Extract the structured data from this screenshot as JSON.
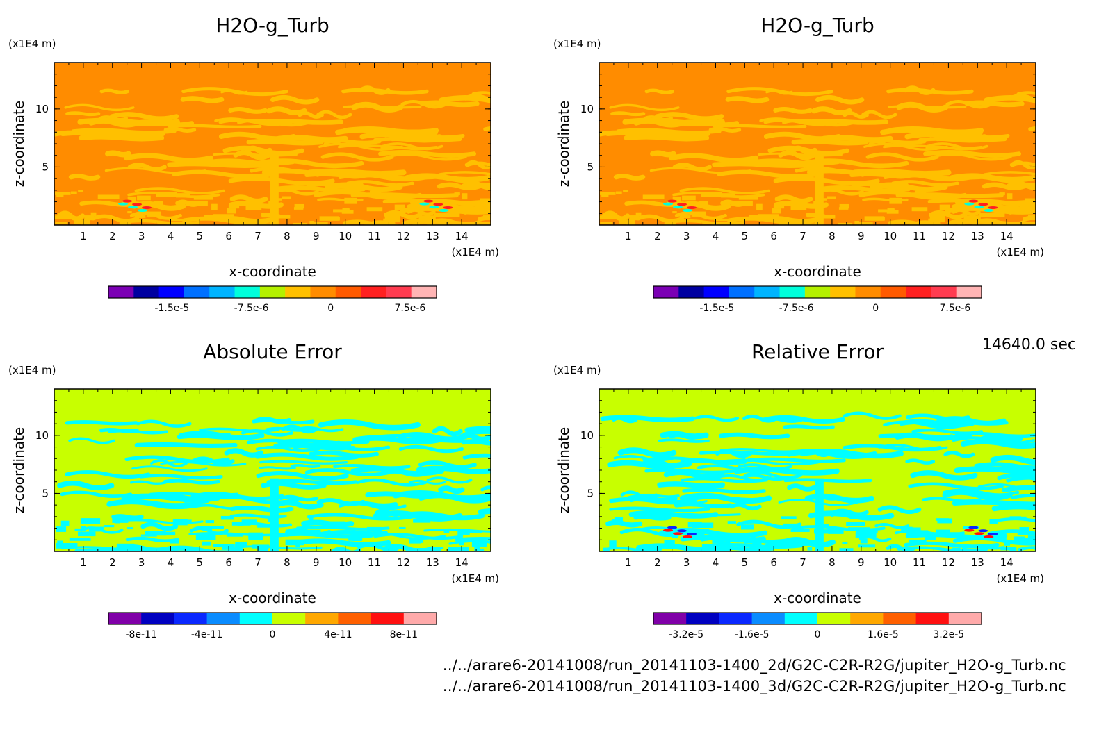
{
  "timestamp": "14640.0 sec",
  "footer": {
    "line1": "../../arare6-20141008/run_20141103-1400_2d/G2C-C2R-R2G/jupiter_H2O-g_Turb.nc",
    "line2": "../../arare6-20141008/run_20141103-1400_3d/G2C-C2R-R2G/jupiter_H2O-g_Turb.nc"
  },
  "chart_data": [
    {
      "type": "heatmap",
      "title": "H2O-g_Turb",
      "xlabel": "x-coordinate",
      "ylabel": "z-coordinate",
      "xunit": "(x1E4 m)",
      "yunit": "(x1E4 m)",
      "xlim": [
        0,
        15
      ],
      "ylim": [
        0,
        14
      ],
      "xticks": [
        "1",
        "2",
        "3",
        "4",
        "5",
        "6",
        "7",
        "8",
        "9",
        "10",
        "11",
        "12",
        "13",
        "14"
      ],
      "yticks": [
        "5",
        "10"
      ],
      "colorbar": {
        "colors": [
          "#7b00b4",
          "#0000a0",
          "#0000ff",
          "#0070ff",
          "#00b4ff",
          "#00ffdc",
          "#b4f000",
          "#ffc000",
          "#ff8c00",
          "#ff5a00",
          "#ff2020",
          "#ff3c50",
          "#ffb4b4"
        ],
        "labels": [
          "-1.5e-5",
          "-7.5e-6",
          "0",
          "7.5e-6"
        ],
        "label_positions": [
          -1.5e-05,
          -7.5e-06,
          0,
          7.5e-06
        ],
        "range": [
          -2.1e-05,
          1e-05
        ]
      },
      "palette": {
        "base": "#ff8c00",
        "secondary": "#ffc000",
        "accent": [
          "#00ffdc",
          "#ff2020"
        ]
      }
    },
    {
      "type": "heatmap",
      "title": "H2O-g_Turb",
      "xlabel": "x-coordinate",
      "ylabel": "z-coordinate",
      "xunit": "(x1E4 m)",
      "yunit": "(x1E4 m)",
      "xlim": [
        0,
        15
      ],
      "ylim": [
        0,
        14
      ],
      "xticks": [
        "1",
        "2",
        "3",
        "4",
        "5",
        "6",
        "7",
        "8",
        "9",
        "10",
        "11",
        "12",
        "13",
        "14"
      ],
      "yticks": [
        "5",
        "10"
      ],
      "colorbar": {
        "colors": [
          "#7b00b4",
          "#0000a0",
          "#0000ff",
          "#0070ff",
          "#00b4ff",
          "#00ffdc",
          "#b4f000",
          "#ffc000",
          "#ff8c00",
          "#ff5a00",
          "#ff2020",
          "#ff3c50",
          "#ffb4b4"
        ],
        "labels": [
          "-1.5e-5",
          "-7.5e-6",
          "0",
          "7.5e-6"
        ],
        "label_positions": [
          -1.5e-05,
          -7.5e-06,
          0,
          7.5e-06
        ],
        "range": [
          -2.1e-05,
          1e-05
        ]
      },
      "palette": {
        "base": "#ff8c00",
        "secondary": "#ffc000",
        "accent": [
          "#00ffdc",
          "#ff2020"
        ]
      }
    },
    {
      "type": "heatmap",
      "title": "Absolute Error",
      "xlabel": "x-coordinate",
      "ylabel": "z-coordinate",
      "xunit": "(x1E4 m)",
      "yunit": "(x1E4 m)",
      "xlim": [
        0,
        15
      ],
      "ylim": [
        0,
        14
      ],
      "xticks": [
        "1",
        "2",
        "3",
        "4",
        "5",
        "6",
        "7",
        "8",
        "9",
        "10",
        "11",
        "12",
        "13",
        "14"
      ],
      "yticks": [
        "5",
        "10"
      ],
      "colorbar": {
        "colors": [
          "#8000a8",
          "#0000c0",
          "#0a28ff",
          "#0a8cff",
          "#00ffff",
          "#c8ff00",
          "#ffa800",
          "#ff6000",
          "#ff1010",
          "#ffaaaa"
        ],
        "labels": [
          "-8e-11",
          "-4e-11",
          "0",
          "4e-11",
          "8e-11"
        ],
        "label_positions": [
          -8e-11,
          -4e-11,
          0,
          4e-11,
          8e-11
        ],
        "range": [
          -1e-10,
          1e-10
        ]
      },
      "palette": {
        "base": "#c8ff00",
        "secondary": "#00ffff",
        "accent": []
      }
    },
    {
      "type": "heatmap",
      "title": "Relative Error",
      "xlabel": "x-coordinate",
      "ylabel": "z-coordinate",
      "xunit": "(x1E4 m)",
      "yunit": "(x1E4 m)",
      "xlim": [
        0,
        15
      ],
      "ylim": [
        0,
        14
      ],
      "xticks": [
        "1",
        "2",
        "3",
        "4",
        "5",
        "6",
        "7",
        "8",
        "9",
        "10",
        "11",
        "12",
        "13",
        "14"
      ],
      "yticks": [
        "5",
        "10"
      ],
      "colorbar": {
        "colors": [
          "#8000a8",
          "#0000c0",
          "#0a28ff",
          "#0a8cff",
          "#00ffff",
          "#c8ff00",
          "#ffa800",
          "#ff6000",
          "#ff1010",
          "#ffaaaa"
        ],
        "labels": [
          "-3.2e-5",
          "-1.6e-5",
          "0",
          "1.6e-5",
          "3.2e-5"
        ],
        "label_positions": [
          -3.2e-05,
          -1.6e-05,
          0,
          1.6e-05,
          3.2e-05
        ],
        "range": [
          -4e-05,
          4e-05
        ]
      },
      "palette": {
        "base": "#c8ff00",
        "secondary": "#00ffff",
        "accent": [
          "#ff1010",
          "#0a28ff"
        ]
      }
    }
  ]
}
